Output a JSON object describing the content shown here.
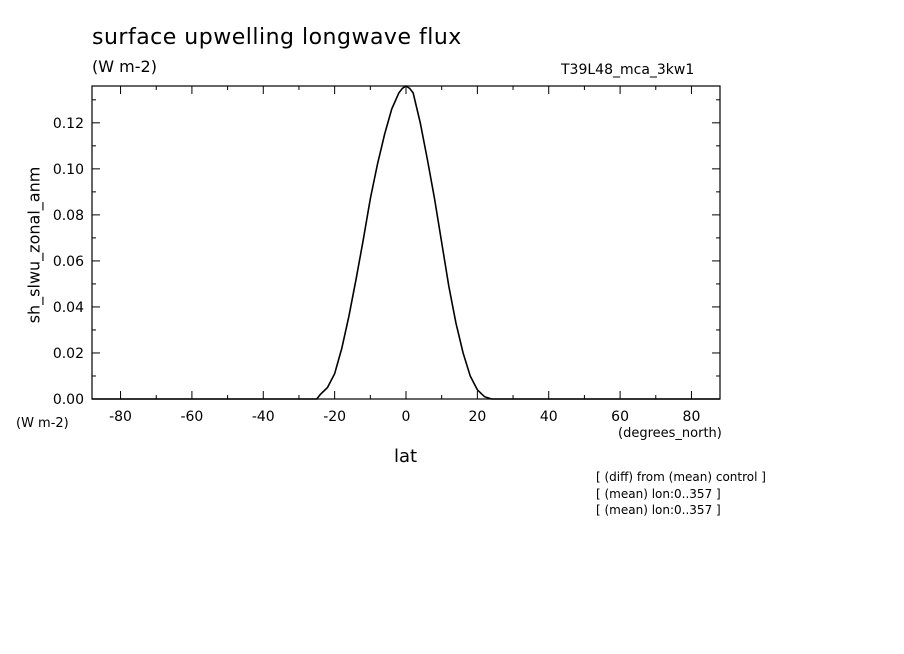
{
  "header": {
    "title": "surface upwelling longwave flux",
    "units": "(W m-2)",
    "run_name": "T39L48_mca_3kw1"
  },
  "notes": [
    "[ (diff) from (mean) control ]",
    "[ (mean) lon:0..357 ]",
    "[ (mean) lon:0..357 ]"
  ],
  "chart_data": {
    "type": "line",
    "title": "surface upwelling longwave flux",
    "xlabel": "lat",
    "xunits": "(degrees_north)",
    "ylabel": "sh_slwu_zonal_anm",
    "yunits": "(W m-2)",
    "xlim": [
      -88,
      88
    ],
    "ylim": [
      0,
      0.136
    ],
    "xticks": [
      -80,
      -60,
      -40,
      -20,
      0,
      20,
      40,
      60,
      80
    ],
    "xtick_labels": [
      "-80",
      "-60",
      "-40",
      "-20",
      "0",
      "20",
      "40",
      "60",
      "80"
    ],
    "yticks": [
      0,
      0.02,
      0.04,
      0.06,
      0.08,
      0.1,
      0.12
    ],
    "ytick_labels": [
      "0.00",
      "0.02",
      "0.04",
      "0.06",
      "0.08",
      "0.10",
      "0.12"
    ],
    "grid": false,
    "series": [
      {
        "x": [
          -88,
          -25,
          -24,
          -22,
          -20,
          -18,
          -16,
          -14,
          -12,
          -10,
          -8,
          -6,
          -4,
          -2,
          -1,
          0,
          1,
          2,
          4,
          6,
          8,
          10,
          12,
          14,
          16,
          18,
          20,
          22,
          24,
          25,
          88
        ],
        "y": [
          0,
          0,
          0.002,
          0.005,
          0.011,
          0.022,
          0.036,
          0.052,
          0.069,
          0.087,
          0.102,
          0.115,
          0.126,
          0.133,
          0.135,
          0.136,
          0.135,
          0.133,
          0.12,
          0.104,
          0.087,
          0.068,
          0.049,
          0.033,
          0.02,
          0.01,
          0.004,
          0.001,
          0,
          0,
          0
        ]
      }
    ]
  }
}
